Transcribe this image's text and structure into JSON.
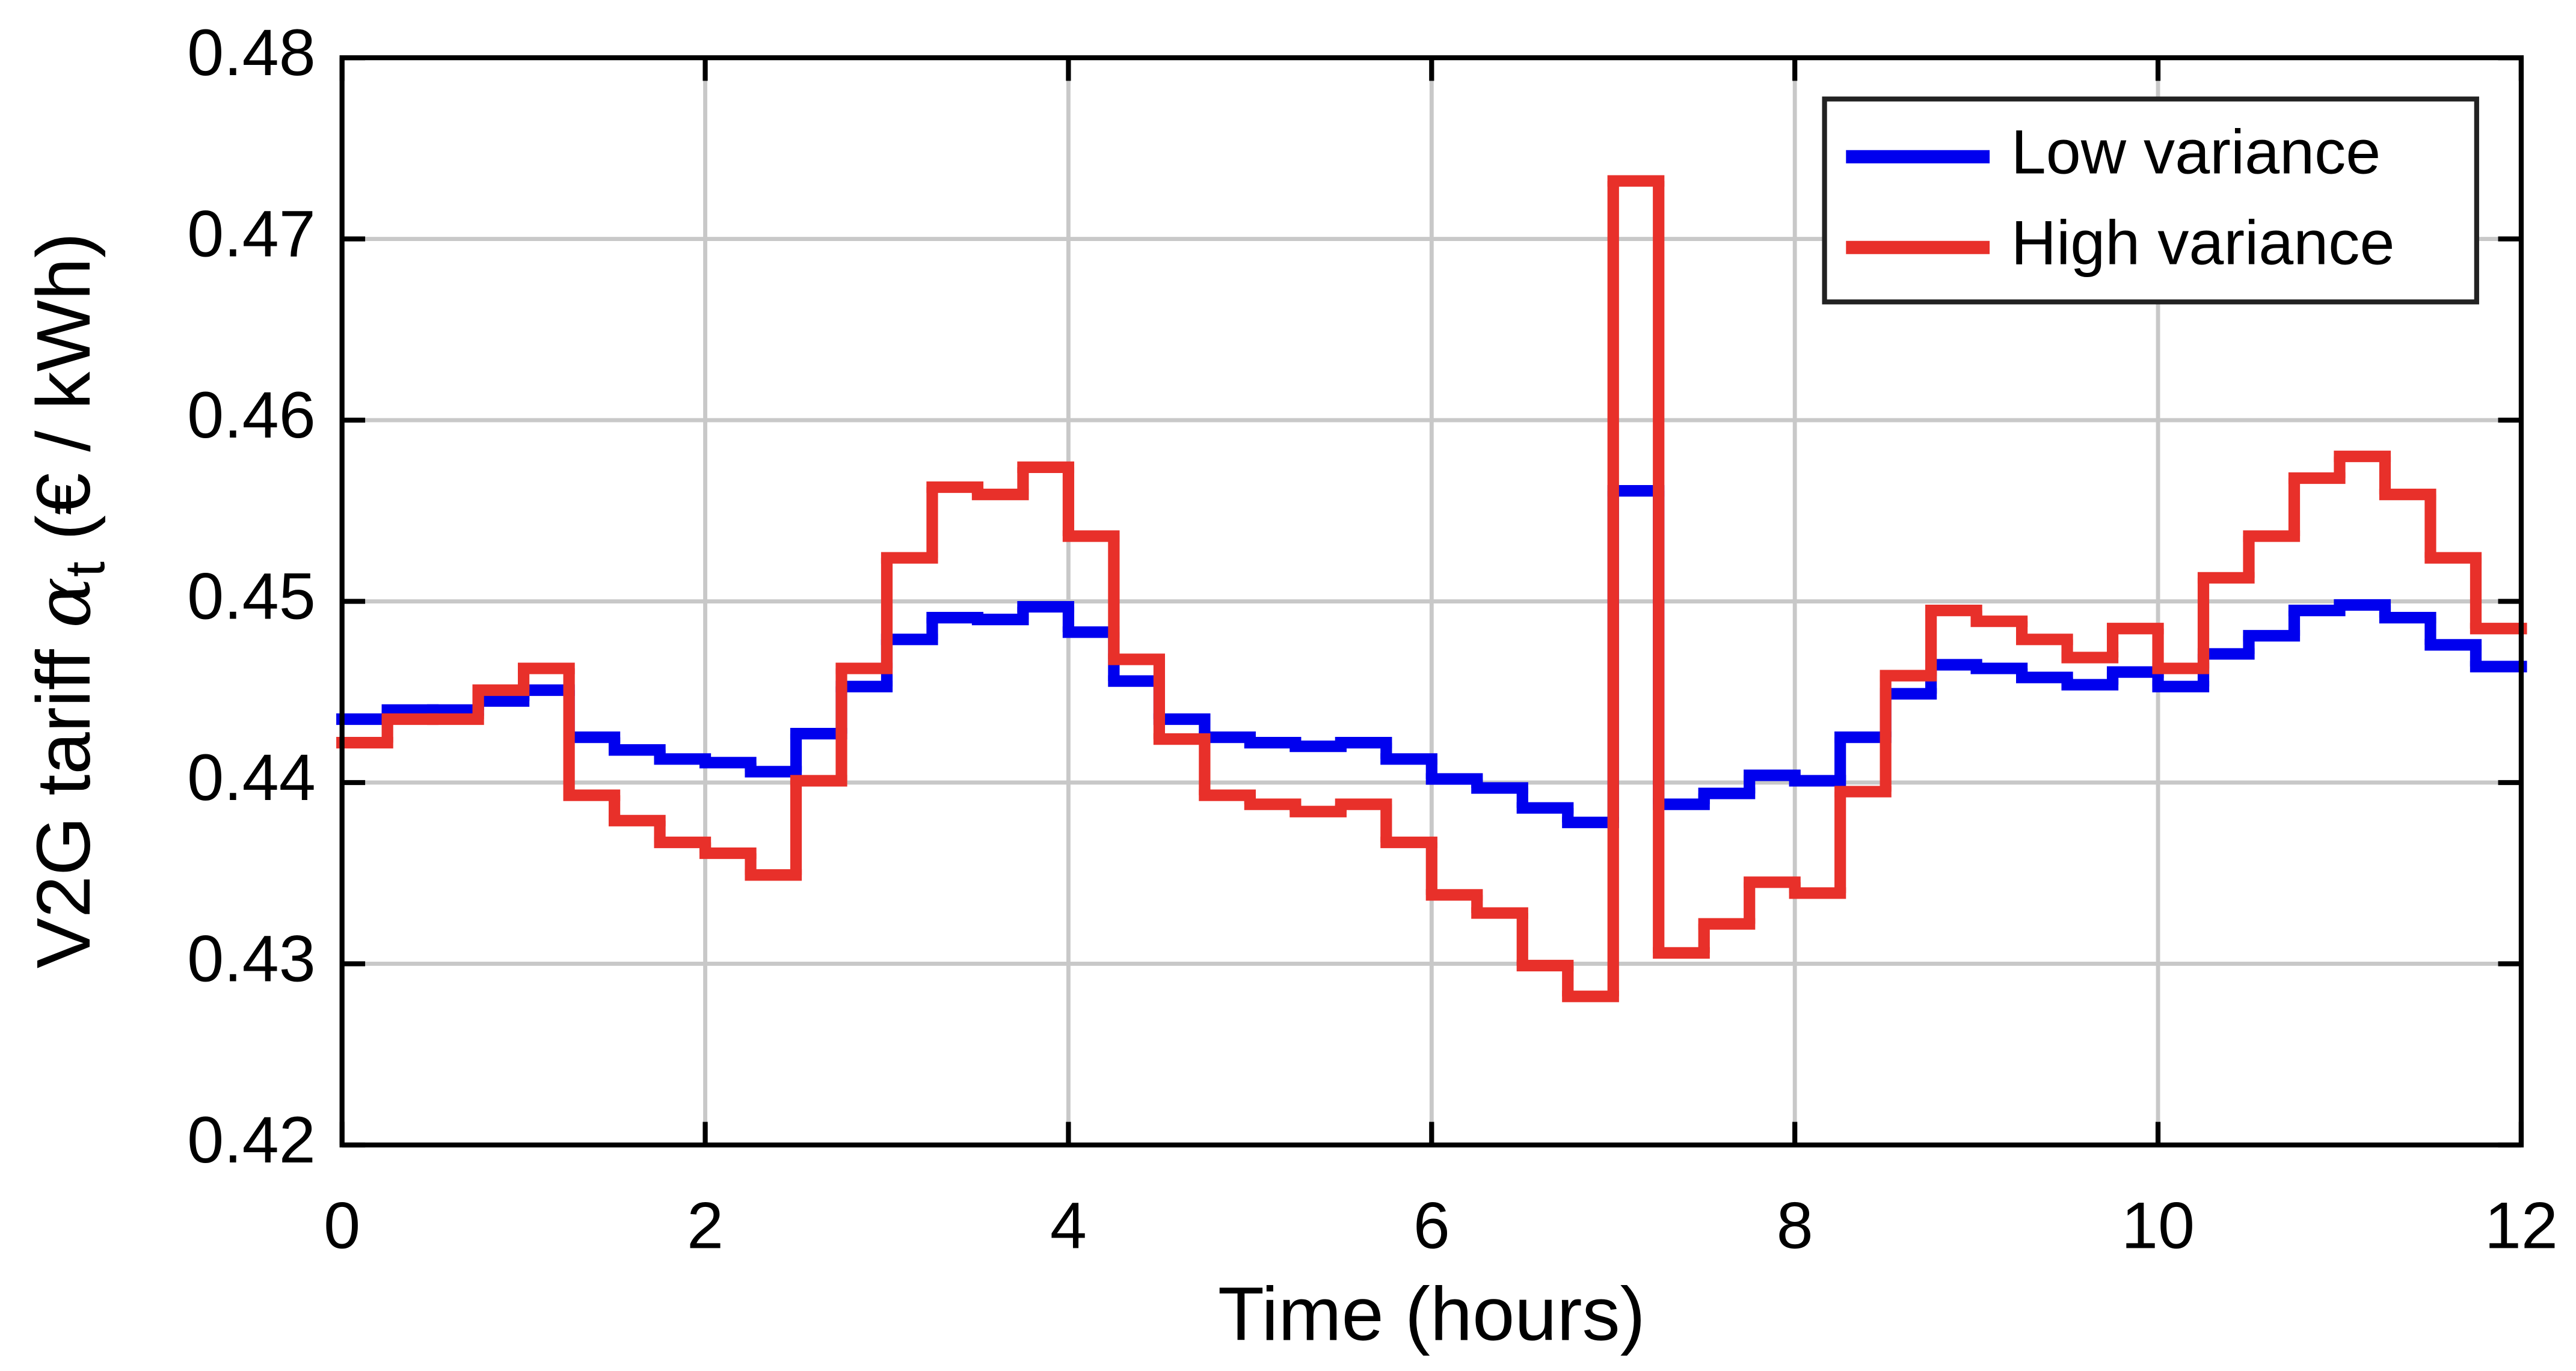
{
  "chart_data": {
    "type": "step",
    "xlabel": "Time (hours)",
    "ylabel": [
      "V2G tariff ",
      "α",
      "t",
      " (€ / kWh)"
    ],
    "x": [
      0,
      0.25,
      0.5,
      0.75,
      1,
      1.25,
      1.5,
      1.75,
      2,
      2.25,
      2.5,
      2.75,
      3,
      3.25,
      3.5,
      3.75,
      4,
      4.25,
      4.5,
      4.75,
      5,
      5.25,
      5.5,
      5.75,
      6,
      6.25,
      6.5,
      6.75,
      7,
      7.25,
      7.5,
      7.75,
      8,
      8.25,
      8.5,
      8.75,
      9,
      9.25,
      9.5,
      9.75,
      10,
      10.25,
      10.5,
      10.75,
      11,
      11.25,
      11.5,
      11.75
    ],
    "series": [
      {
        "name": "Low variance",
        "color": "#0000ee",
        "values": [
          0.4435,
          0.444,
          0.444,
          0.4445,
          0.4451,
          0.4425,
          0.4418,
          0.4413,
          0.4411,
          0.4406,
          0.4427,
          0.4453,
          0.4479,
          0.4491,
          0.449,
          0.4497,
          0.4483,
          0.4456,
          0.4435,
          0.4425,
          0.4422,
          0.442,
          0.4422,
          0.4413,
          0.4402,
          0.4397,
          0.4386,
          0.4378,
          0.4561,
          0.4388,
          0.4394,
          0.4404,
          0.4401,
          0.4425,
          0.4449,
          0.4465,
          0.4463,
          0.4458,
          0.4454,
          0.4461,
          0.4453,
          0.4471,
          0.4481,
          0.4495,
          0.4498,
          0.4491,
          0.4476,
          0.4464
        ]
      },
      {
        "name": "High variance",
        "color": "#e8302a",
        "values": [
          0.4422,
          0.4435,
          0.4435,
          0.4451,
          0.4463,
          0.4393,
          0.4379,
          0.4367,
          0.4361,
          0.4349,
          0.4401,
          0.4463,
          0.4524,
          0.4563,
          0.4559,
          0.4574,
          0.4536,
          0.4468,
          0.4424,
          0.4393,
          0.4388,
          0.4384,
          0.4388,
          0.4367,
          0.4338,
          0.4328,
          0.4299,
          0.4282,
          0.4732,
          0.4306,
          0.4322,
          0.4345,
          0.4339,
          0.4395,
          0.4459,
          0.4495,
          0.4489,
          0.4479,
          0.4469,
          0.4485,
          0.4463,
          0.4513,
          0.4536,
          0.4568,
          0.458,
          0.4559,
          0.4524,
          0.4485
        ]
      }
    ],
    "xlim": [
      0,
      12
    ],
    "xticks": [
      0,
      2,
      4,
      6,
      8,
      10,
      12
    ],
    "ylim": [
      0.42,
      0.48
    ],
    "yticks": [
      0.42,
      0.43,
      0.44,
      0.45,
      0.46,
      0.47,
      0.48
    ],
    "grid": true,
    "legend": "upper right"
  }
}
